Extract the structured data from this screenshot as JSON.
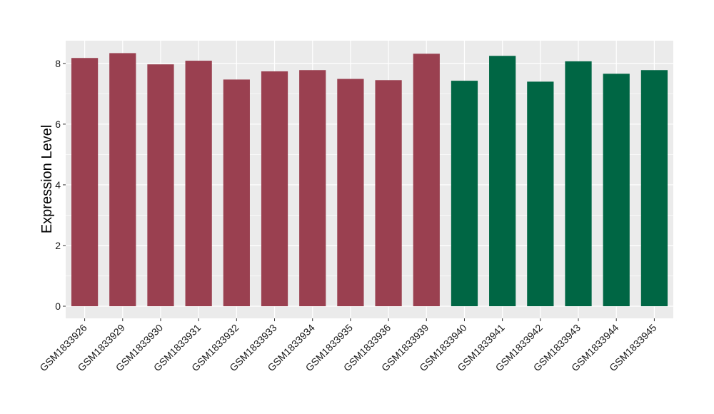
{
  "chart_data": {
    "type": "bar",
    "categories": [
      "GSM1833926",
      "GSM1833929",
      "GSM1833930",
      "GSM1833931",
      "GSM1833932",
      "GSM1833933",
      "GSM1833934",
      "GSM1833935",
      "GSM1833936",
      "GSM1833939",
      "GSM1833940",
      "GSM1833941",
      "GSM1833942",
      "GSM1833943",
      "GSM1833944",
      "GSM1833945"
    ],
    "values": [
      8.18,
      8.34,
      7.97,
      8.09,
      7.47,
      7.74,
      7.78,
      7.49,
      7.45,
      8.32,
      7.43,
      8.25,
      7.4,
      8.07,
      7.66,
      7.78
    ],
    "bar_colors": [
      "#9a4050",
      "#9a4050",
      "#9a4050",
      "#9a4050",
      "#9a4050",
      "#9a4050",
      "#9a4050",
      "#9a4050",
      "#9a4050",
      "#9a4050",
      "#006644",
      "#006644",
      "#006644",
      "#006644",
      "#006644",
      "#006644"
    ],
    "title": "",
    "xlabel": "",
    "ylabel": "Expression Level",
    "ylim": [
      -0.4,
      8.75
    ],
    "yticks": [
      0,
      2,
      4,
      6,
      8
    ],
    "grid": true,
    "panel_background": "#ebebeb",
    "grid_color": "#ffffff"
  }
}
